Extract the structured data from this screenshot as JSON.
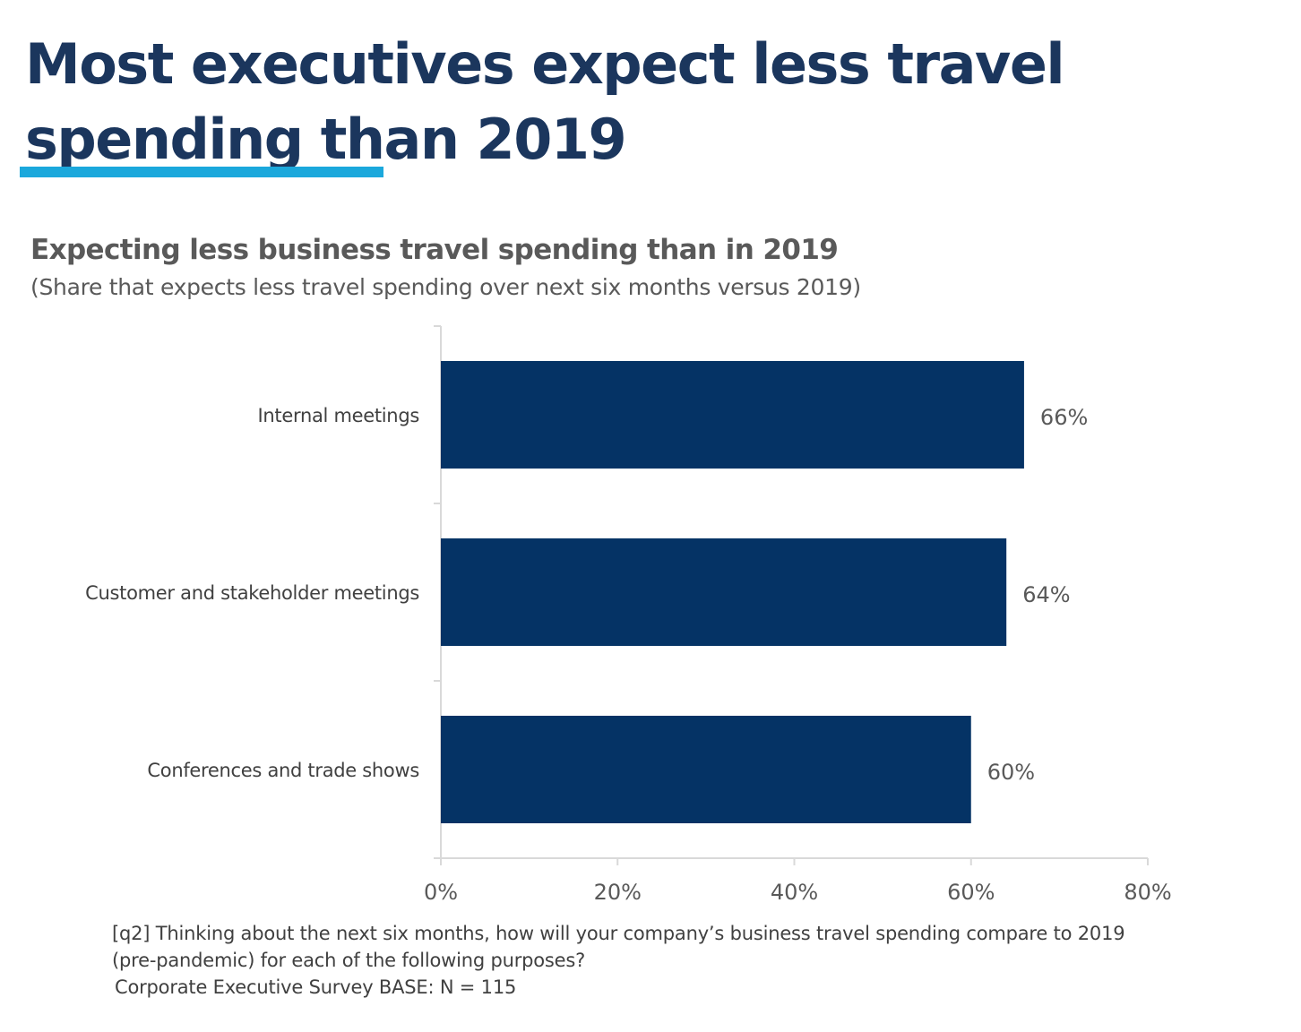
{
  "headline": "Most executives expect less travel spending than 2019",
  "colors": {
    "headline": "#1b365d",
    "accent_underline": "#1ba8dc",
    "bar": "#053365",
    "text": "#595959",
    "axis": "#d9d9d9"
  },
  "chart_data": {
    "type": "bar",
    "orientation": "horizontal",
    "title": "Expecting less business travel spending than in 2019",
    "subtitle": "(Share that expects less travel spending over next six months versus 2019)",
    "categories": [
      "Internal meetings",
      "Customer and stakeholder meetings",
      "Conferences and trade shows"
    ],
    "values": [
      66,
      64,
      60
    ],
    "data_labels": [
      "66%",
      "64%",
      "60%"
    ],
    "xlim": [
      0,
      80
    ],
    "xticks": [
      0,
      20,
      40,
      60,
      80
    ],
    "xtick_labels": [
      "0%",
      "20%",
      "40%",
      "60%",
      "80%"
    ],
    "grid": false,
    "legend": "none"
  },
  "footnote": {
    "question": "[q2] Thinking about the next six months, how will your company’s business travel spending compare to 2019 (pre-pandemic) for each of the following purposes?",
    "base": "Corporate Executive Survey BASE: N = 115"
  }
}
